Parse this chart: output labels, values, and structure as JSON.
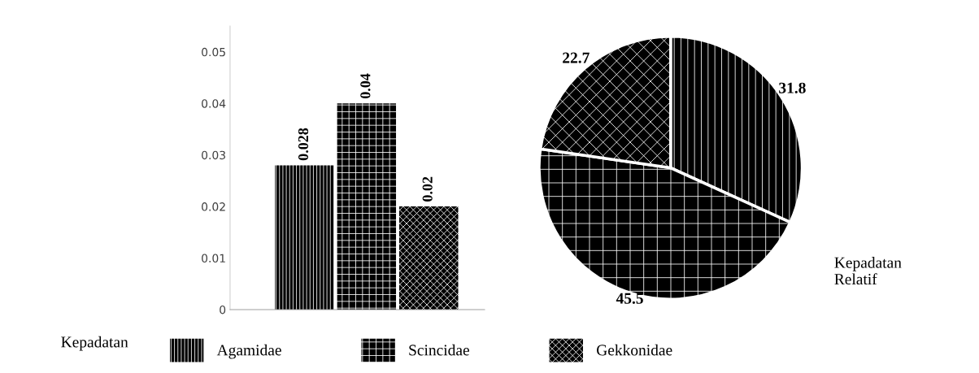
{
  "chart_data": [
    {
      "type": "bar",
      "categories": [
        null,
        null,
        null
      ],
      "series": [
        {
          "name": "Agamidae",
          "color": "#000000",
          "values": [
            0.028,
            null,
            null
          ]
        },
        {
          "name": "Scincidae",
          "color": "#000000",
          "values": [
            null,
            0.04,
            null
          ]
        },
        {
          "name": "Gekkonidae",
          "color": "#000000",
          "values": [
            null,
            null,
            0.02
          ]
        }
      ],
      "ylim": [
        0,
        0.055
      ],
      "yticks": [
        0,
        0.01,
        0.02,
        0.03,
        0.04,
        0.05
      ],
      "data_labels": true,
      "value_labels": [
        "0.028",
        "0.04",
        "0.02"
      ],
      "grid": false,
      "legend": "bottom",
      "annotations": [
        "Kepadatan"
      ]
    },
    {
      "type": "pie",
      "categories": [
        null,
        null,
        null
      ],
      "values": [
        31.8,
        45.5,
        22.7
      ],
      "colors": [
        "#000000",
        "#000000",
        "#000000"
      ],
      "data_labels": true,
      "legend": false,
      "annotations": [
        "Kepadatan\nRelatif"
      ]
    }
  ]
}
